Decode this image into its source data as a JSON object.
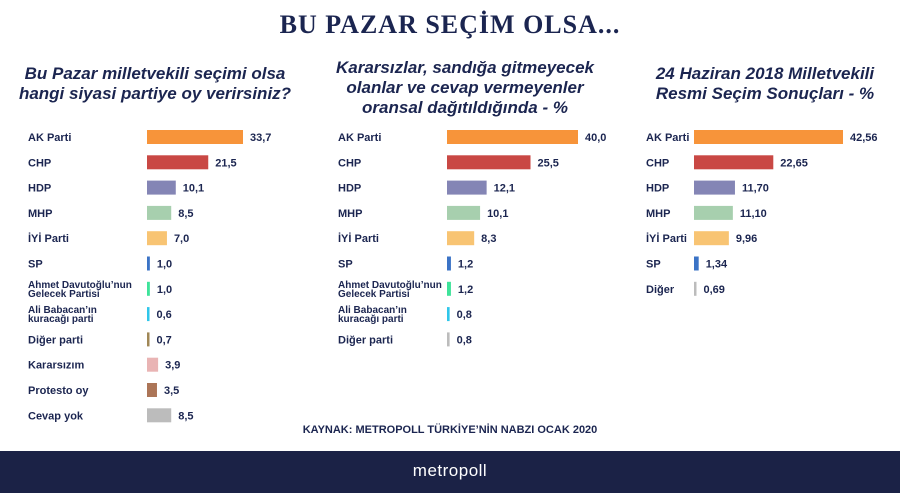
{
  "header": {
    "title": "BU PAZAR SEÇİM OLSA..."
  },
  "source": "KAYNAK: METROPOLL TÜRKİYE’NİN NABZI OCAK 2020",
  "footer": {
    "brand": "metropoll"
  },
  "chart_data": [
    {
      "type": "bar",
      "title": [
        "Bu Pazar milletvekili seçimi olsa",
        "hangi siyasi partiye oy verirsiniz?"
      ],
      "categories": [
        [
          "AK Parti"
        ],
        [
          "CHP"
        ],
        [
          "HDP"
        ],
        [
          "MHP"
        ],
        [
          "İYİ Parti"
        ],
        [
          "SP"
        ],
        [
          "Ahmet Davutoğlu’nun",
          "Gelecek Partisi"
        ],
        [
          "Ali Babacan’ın",
          "kuracağı parti"
        ],
        [
          "Diğer parti"
        ],
        [
          "Kararsızım"
        ],
        [
          "Protesto oy"
        ],
        [
          "Cevap yok"
        ]
      ],
      "values": [
        33.7,
        21.5,
        10.1,
        8.5,
        7.0,
        1.0,
        1.0,
        0.6,
        0.7,
        3.9,
        3.5,
        8.5
      ],
      "labels": [
        "33,7",
        "21,5",
        "10,1",
        "8,5",
        "7,0",
        "1,0",
        "1,0",
        "0,6",
        "0,7",
        "3,9",
        "3,5",
        "8,5"
      ],
      "colors": [
        "#f7943a",
        "#c94844",
        "#8485b5",
        "#a7cfae",
        "#f8c473",
        "#3b73c6",
        "#3ee39a",
        "#2fc6ea",
        "#a08756",
        "#e9b4b4",
        "#ac7557",
        "#bcbcbc"
      ]
    },
    {
      "type": "bar",
      "title": [
        "Kararsızlar, sandığa gitmeyecek",
        "olanlar ve cevap vermeyenler",
        "oransal dağıtıldığında - %"
      ],
      "categories": [
        [
          "AK Parti"
        ],
        [
          "CHP"
        ],
        [
          "HDP"
        ],
        [
          "MHP"
        ],
        [
          "İYİ Parti"
        ],
        [
          "SP"
        ],
        [
          "Ahmet Davutoğlu’nun",
          "Gelecek Partisi"
        ],
        [
          "Ali Babacan’ın",
          "kuracağı parti"
        ],
        [
          "Diğer parti"
        ]
      ],
      "values": [
        40.0,
        25.5,
        12.1,
        10.1,
        8.3,
        1.2,
        1.2,
        0.8,
        0.8
      ],
      "labels": [
        "40,0",
        "25,5",
        "12,1",
        "10,1",
        "8,3",
        "1,2",
        "1,2",
        "0,8",
        "0,8"
      ],
      "colors": [
        "#f7943a",
        "#c94844",
        "#8485b5",
        "#a7cfae",
        "#f8c473",
        "#3b73c6",
        "#3ee39a",
        "#2fc6ea",
        "#bcbcbc"
      ]
    },
    {
      "type": "bar",
      "title": [
        "24 Haziran 2018 Milletvekili",
        "Resmi Seçim Sonuçları - %"
      ],
      "categories": [
        [
          "AK Parti"
        ],
        [
          "CHP"
        ],
        [
          "HDP"
        ],
        [
          "MHP"
        ],
        [
          "İYİ Parti"
        ],
        [
          "SP"
        ],
        [
          "Diğer"
        ]
      ],
      "values": [
        42.56,
        22.65,
        11.7,
        11.1,
        9.96,
        1.34,
        0.69
      ],
      "labels": [
        "42,56",
        "22,65",
        "11,70",
        "11,10",
        "9,96",
        "1,34",
        "0,69"
      ],
      "colors": [
        "#f7943a",
        "#c94844",
        "#8485b5",
        "#a7cfae",
        "#f8c473",
        "#3b73c6",
        "#bcbcbc"
      ]
    }
  ]
}
